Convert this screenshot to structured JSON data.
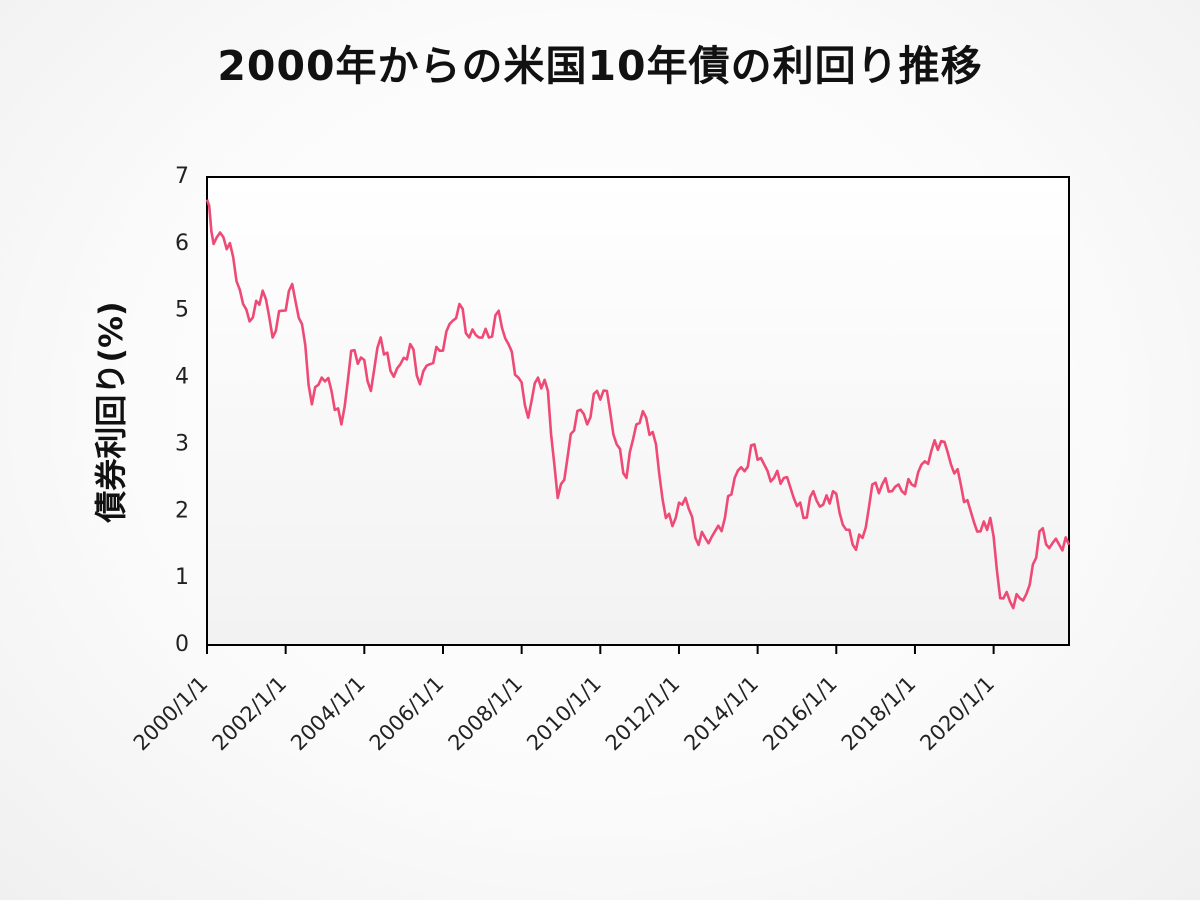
{
  "chart_data": {
    "type": "line",
    "title": "2000年からの米国10年債の利回り推移",
    "xlabel": "",
    "ylabel": "債券利回り(%)",
    "ylim": [
      0,
      7
    ],
    "yticks": [
      "0",
      "1",
      "2",
      "3",
      "4",
      "5",
      "6",
      "7"
    ],
    "xlim": [
      "2000-01-01",
      "2021-12-01"
    ],
    "xticks": [
      "2000/1/1",
      "2002/1/1",
      "2004/1/1",
      "2006/1/1",
      "2008/1/1",
      "2010/1/1",
      "2012/1/1",
      "2014/1/1",
      "2016/1/1",
      "2018/1/1",
      "2020/1/1"
    ],
    "line_color": "#ee4a75",
    "grid": false,
    "legend": false,
    "series": [
      {
        "x": [
          "2000-01",
          "2000-03",
          "2000-06",
          "2000-09",
          "2000-12",
          "2001-03",
          "2001-06",
          "2001-09",
          "2001-12",
          "2002-03",
          "2002-06",
          "2002-09",
          "2002-12",
          "2003-03",
          "2003-06",
          "2003-09",
          "2003-12",
          "2004-03",
          "2004-06",
          "2004-09",
          "2004-12",
          "2005-03",
          "2005-06",
          "2005-09",
          "2005-12",
          "2006-03",
          "2006-06",
          "2006-09",
          "2006-12",
          "2007-03",
          "2007-06",
          "2007-09",
          "2007-12",
          "2008-03",
          "2008-06",
          "2008-09",
          "2008-12",
          "2009-03",
          "2009-06",
          "2009-09",
          "2009-12",
          "2010-03",
          "2010-06",
          "2010-09",
          "2010-12",
          "2011-03",
          "2011-06",
          "2011-09",
          "2011-12",
          "2012-03",
          "2012-06",
          "2012-09",
          "2012-12",
          "2013-03",
          "2013-06",
          "2013-09",
          "2013-12",
          "2014-03",
          "2014-06",
          "2014-09",
          "2014-12",
          "2015-03",
          "2015-06",
          "2015-09",
          "2015-12",
          "2016-03",
          "2016-06",
          "2016-09",
          "2016-12",
          "2017-03",
          "2017-06",
          "2017-09",
          "2017-12",
          "2018-03",
          "2018-06",
          "2018-09",
          "2018-12",
          "2019-03",
          "2019-06",
          "2019-09",
          "2019-12",
          "2020-03",
          "2020-06",
          "2020-09",
          "2020-12",
          "2021-03",
          "2021-06",
          "2021-09",
          "2021-12"
        ],
        "values": [
          6.66,
          6.0,
          6.1,
          5.8,
          5.1,
          4.9,
          5.3,
          4.6,
          5.0,
          5.4,
          4.8,
          3.6,
          4.0,
          3.8,
          3.3,
          4.4,
          4.3,
          3.8,
          4.6,
          4.1,
          4.2,
          4.5,
          3.9,
          4.2,
          4.4,
          4.8,
          5.1,
          4.6,
          4.6,
          4.6,
          5.0,
          4.5,
          4.0,
          3.4,
          4.0,
          3.8,
          2.2,
          2.8,
          3.5,
          3.3,
          3.8,
          3.8,
          3.0,
          2.5,
          3.3,
          3.4,
          3.0,
          1.9,
          1.9,
          2.2,
          1.6,
          1.6,
          1.7,
          1.9,
          2.5,
          2.6,
          3.0,
          2.7,
          2.5,
          2.5,
          2.2,
          1.9,
          2.3,
          2.1,
          2.3,
          1.8,
          1.5,
          1.6,
          2.4,
          2.4,
          2.3,
          2.3,
          2.4,
          2.7,
          2.9,
          3.05,
          2.7,
          2.4,
          2.0,
          1.7,
          1.9,
          0.7,
          0.65,
          0.7,
          0.9,
          1.7,
          1.45,
          1.5,
          1.5
        ]
      }
    ]
  }
}
